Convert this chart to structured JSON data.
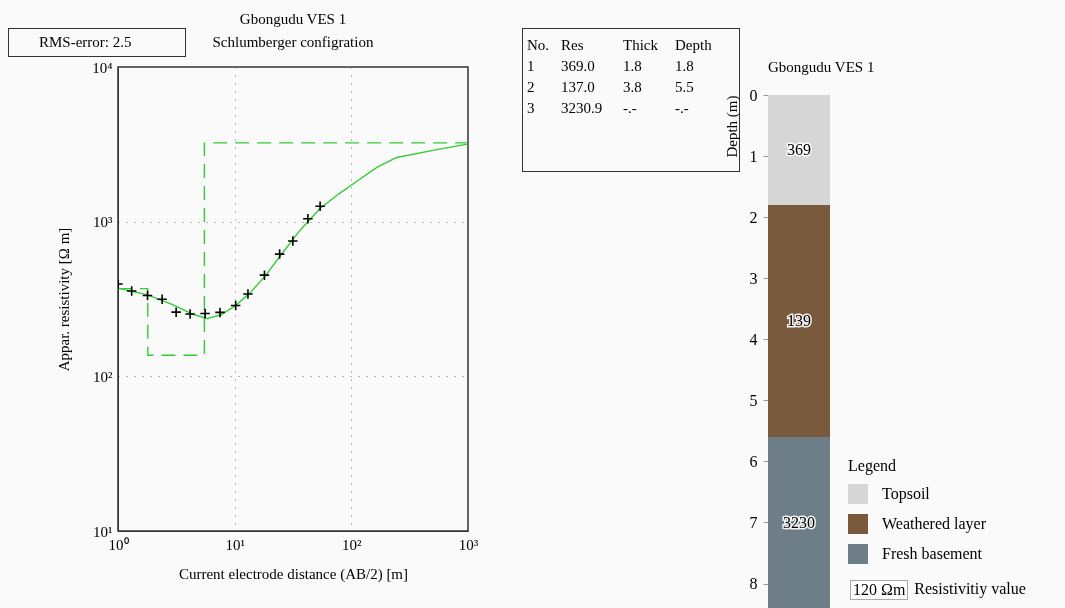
{
  "chart_data": [
    {
      "type": "scatter",
      "title": "Gbongudu VES 1",
      "subtitle": "Schlumberger configration",
      "xlabel": "Current electrode distance (AB/2) [m]",
      "ylabel": "Appar. resistivity  [Ω m]",
      "log": "xy",
      "grid": true,
      "xlim": [
        1,
        1000
      ],
      "xticks": [
        {
          "value": 1,
          "label": "10⁰"
        },
        {
          "value": 10,
          "label": "10¹"
        },
        {
          "value": 100,
          "label": "10²"
        },
        {
          "value": 1000,
          "label": "10³"
        }
      ],
      "ylim": [
        10,
        10000
      ],
      "yticks": [
        {
          "value": 10,
          "label": "10¹"
        },
        {
          "value": 100,
          "label": "10²"
        },
        {
          "value": 1000,
          "label": "10³"
        },
        {
          "value": 10000,
          "label": "10⁴"
        }
      ],
      "annotations": [
        "RMS-error: 2.5"
      ],
      "series": [
        {
          "type": "scatter",
          "marker": "cross",
          "color": "#000000",
          "x": [
            1.0,
            1.31,
            1.79,
            2.39,
            3.15,
            4.15,
            5.58,
            7.49,
            10.2,
            13.0,
            18.0,
            24.3,
            31.5,
            42.4,
            54.0
          ],
          "values": [
            395,
            356,
            333,
            315,
            260,
            253,
            255,
            259,
            287,
            341,
            451,
            617,
            750,
            1045,
            1259
          ]
        },
        {
          "type": "line",
          "color": "#33cc33",
          "line_style": "solid",
          "x": [
            1,
            1.79,
            2.94,
            4.31,
            5.84,
            7.62,
            9.96,
            13.5,
            18.3,
            24.9,
            36.4,
            53.4,
            78.2,
            114,
            167,
            245,
            526,
            991
          ],
          "values": [
            372,
            336,
            291,
            253,
            236,
            250,
            283,
            345,
            446,
            609,
            881,
            1207,
            1514,
            1846,
            2254,
            2600,
            2911,
            3170
          ]
        },
        {
          "type": "step",
          "color": "#33cc33",
          "line_style": "dashed",
          "x": [
            1,
            1.8,
            5.5,
            1000
          ],
          "values": [
            369,
            137,
            3230.9,
            3230.9
          ]
        }
      ]
    },
    {
      "type": "other",
      "annotations": [
        "No.  Res  Thick  Depth",
        "1  369.0  1.8  1.8",
        "2  137.0  3.8  5.5",
        "3  3230.9  -.-  -.-"
      ]
    },
    {
      "type": "bar",
      "stacked": true,
      "title": "Gbongudu VES 1",
      "ylabel": "Depth (m)",
      "categories": [
        null
      ],
      "ylim": [
        8.4,
        0
      ],
      "yticks": [
        0,
        1,
        2,
        3,
        4,
        5,
        6,
        7,
        8
      ],
      "legend": "bottom right",
      "legend_title": "Legend",
      "series": [
        {
          "name": "Topsoil",
          "color": "#d6d6d6",
          "values": [
            1.8
          ]
        },
        {
          "name": "Weathered layer",
          "color": "#7a5a3c",
          "values": [
            3.8
          ]
        },
        {
          "name": "Fresh basement",
          "color": "#6e7e88",
          "values": [
            2.8
          ]
        }
      ],
      "annotations": [
        "369",
        "139",
        "3230",
        "120 Ωm",
        "Resistivitiy value"
      ]
    }
  ]
}
